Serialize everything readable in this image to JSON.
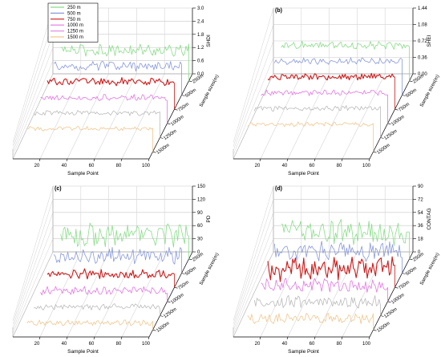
{
  "chart_data": [
    {
      "type": "line",
      "panel_label": "(a)",
      "xlabel": "Sample Point",
      "zlabel": "SHDI",
      "depth_label": "Sample sizes(m)",
      "x_ticks": [
        "20",
        "40",
        "60",
        "80",
        "100"
      ],
      "z_ticks": [
        "0.0",
        "0.6",
        "1.2",
        "1.8",
        "2.4",
        "3.0"
      ],
      "zlim": [
        0,
        3.0
      ],
      "depth_ticks": [
        "250m",
        "500m",
        "750m",
        "1000m",
        "1250m",
        "1500m"
      ],
      "legend_position": "top-left",
      "series": [
        {
          "name": "250 m",
          "color": "#88dd88",
          "mean": 1.4,
          "amp": 0.22
        },
        {
          "name": "500 m",
          "color": "#8899dd",
          "mean": 1.32,
          "amp": 0.18
        },
        {
          "name": "750 m",
          "color": "#d01818",
          "mean": 1.25,
          "amp": 0.15
        },
        {
          "name": "1000 m",
          "color": "#e377e3",
          "mean": 1.18,
          "amp": 0.12
        },
        {
          "name": "1250 m",
          "color": "#bbbbbb",
          "mean": 1.12,
          "amp": 0.1
        },
        {
          "name": "1500 m",
          "color": "#f0c890",
          "mean": 1.05,
          "amp": 0.08
        }
      ]
    },
    {
      "type": "line",
      "panel_label": "(b)",
      "xlabel": "Sample Point",
      "zlabel": "SHEI",
      "depth_label": "Sample sizes(m)",
      "x_ticks": [
        "20",
        "40",
        "60",
        "80",
        "100"
      ],
      "z_ticks": [
        "0.00",
        "0.36",
        "0.72",
        "1.08",
        "1.44"
      ],
      "zlim": [
        0,
        1.44
      ],
      "depth_ticks": [
        "250m",
        "500m",
        "750m",
        "1000m",
        "1250m",
        "1500m"
      ],
      "series": [
        {
          "name": "250 m",
          "color": "#88dd88",
          "mean": 0.78,
          "amp": 0.07
        },
        {
          "name": "500 m",
          "color": "#8899dd",
          "mean": 0.74,
          "amp": 0.06
        },
        {
          "name": "750 m",
          "color": "#d01818",
          "mean": 0.71,
          "amp": 0.06
        },
        {
          "name": "1000 m",
          "color": "#e377e3",
          "mean": 0.67,
          "amp": 0.05
        },
        {
          "name": "1250 m",
          "color": "#bbbbbb",
          "mean": 0.64,
          "amp": 0.05
        },
        {
          "name": "1500 m",
          "color": "#f0c890",
          "mean": 0.6,
          "amp": 0.04
        }
      ]
    },
    {
      "type": "line",
      "panel_label": "(c)",
      "xlabel": "Sample Point",
      "zlabel": "PD",
      "depth_label": "Sample sizes(m)",
      "x_ticks": [
        "20",
        "40",
        "60",
        "80",
        "100"
      ],
      "z_ticks": [
        "0",
        "30",
        "60",
        "90",
        "120",
        "150"
      ],
      "zlim": [
        0,
        150
      ],
      "depth_ticks": [
        "250m",
        "500m",
        "750m",
        "1000m",
        "1250m",
        "1500m"
      ],
      "series": [
        {
          "name": "250 m",
          "color": "#88dd88",
          "mean": 55,
          "amp": 22
        },
        {
          "name": "500 m",
          "color": "#8899dd",
          "mean": 40,
          "amp": 15
        },
        {
          "name": "750 m",
          "color": "#d01818",
          "mean": 30,
          "amp": 10
        },
        {
          "name": "1000 m",
          "color": "#e377e3",
          "mean": 24,
          "amp": 8
        },
        {
          "name": "1250 m",
          "color": "#bbbbbb",
          "mean": 20,
          "amp": 6
        },
        {
          "name": "1500 m",
          "color": "#f0c890",
          "mean": 16,
          "amp": 5
        }
      ]
    },
    {
      "type": "line",
      "panel_label": "(d)",
      "xlabel": "Sample Point",
      "zlabel": "CONTAG",
      "depth_label": "Sample sizes(m)",
      "x_ticks": [
        "20",
        "40",
        "60",
        "80",
        "100"
      ],
      "z_ticks": [
        "0",
        "18",
        "36",
        "54",
        "72",
        "90"
      ],
      "zlim": [
        0,
        90
      ],
      "depth_ticks": [
        "250m",
        "500m",
        "750m",
        "1000m",
        "1250m",
        "1500m"
      ],
      "series": [
        {
          "name": "250 m",
          "color": "#88dd88",
          "mean": 36,
          "amp": 14
        },
        {
          "name": "500 m",
          "color": "#8899dd",
          "mean": 30,
          "amp": 11
        },
        {
          "name": "750 m",
          "color": "#d01818",
          "mean": 26,
          "amp": 14
        },
        {
          "name": "1000 m",
          "color": "#e377e3",
          "mean": 22,
          "amp": 8
        },
        {
          "name": "1250 m",
          "color": "#bbbbbb",
          "mean": 19,
          "amp": 7
        },
        {
          "name": "1500 m",
          "color": "#f0c890",
          "mean": 16,
          "amp": 6
        }
      ]
    }
  ]
}
